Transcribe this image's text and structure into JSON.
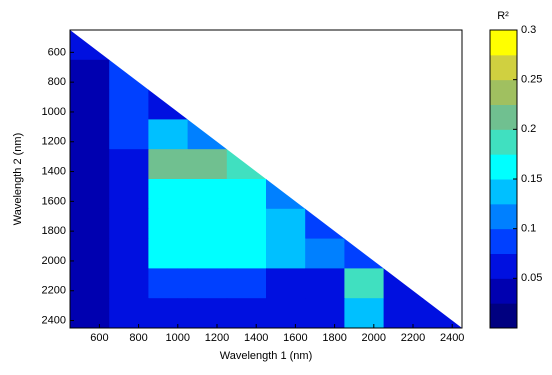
{
  "chart_data": {
    "type": "heatmap",
    "xlabel": "Wavelength 1 (nm)",
    "ylabel": "Wavelength 2 (nm)",
    "colorbar_label": "R²",
    "x": [
      550,
      750,
      950,
      1150,
      1350,
      1550,
      1750,
      1950,
      2150,
      2350
    ],
    "y": [
      550,
      750,
      950,
      1150,
      1350,
      1550,
      1750,
      1950,
      2150,
      2350
    ],
    "cell_size": 200,
    "z": [
      [
        0.05,
        null,
        null,
        null,
        null,
        null,
        null,
        null,
        null,
        null
      ],
      [
        0.04,
        0.08,
        null,
        null,
        null,
        null,
        null,
        null,
        null,
        null
      ],
      [
        0.04,
        0.08,
        0.06,
        null,
        null,
        null,
        null,
        null,
        null,
        null
      ],
      [
        0.04,
        0.08,
        0.14,
        0.12,
        null,
        null,
        null,
        null,
        null,
        null
      ],
      [
        0.04,
        0.07,
        0.21,
        0.21,
        0.19,
        null,
        null,
        null,
        null,
        null
      ],
      [
        0.04,
        0.07,
        0.17,
        0.16,
        0.15,
        0.1,
        null,
        null,
        null,
        null
      ],
      [
        0.04,
        0.06,
        0.16,
        0.16,
        0.15,
        0.13,
        0.09,
        null,
        null,
        null
      ],
      [
        0.04,
        0.06,
        0.15,
        0.16,
        0.15,
        0.14,
        0.12,
        0.08,
        null,
        null
      ],
      [
        0.03,
        0.06,
        0.09,
        0.08,
        0.09,
        0.07,
        0.06,
        0.18,
        0.06,
        null
      ],
      [
        0.03,
        0.06,
        0.07,
        0.07,
        0.06,
        0.05,
        0.05,
        0.14,
        0.06,
        0.05
      ]
    ],
    "xlim": [
      450,
      2450
    ],
    "ylim": [
      450,
      2450
    ],
    "y_inverted": true,
    "xticks": [
      600,
      800,
      1000,
      1200,
      1400,
      1600,
      1800,
      2000,
      2200,
      2400
    ],
    "yticks": [
      600,
      800,
      1000,
      1200,
      1400,
      1600,
      1800,
      2000,
      2200,
      2400
    ],
    "clim": [
      0,
      0.3
    ],
    "cticks": [
      0.05,
      0.1,
      0.15,
      0.2,
      0.25,
      0.3
    ],
    "colors": [
      "#000080",
      "#0000b0",
      "#0010e0",
      "#0040ff",
      "#0080ff",
      "#00c0ff",
      "#00ffff",
      "#40e0c0",
      "#70c090",
      "#a0c060",
      "#d0d040",
      "#ffff00"
    ]
  }
}
